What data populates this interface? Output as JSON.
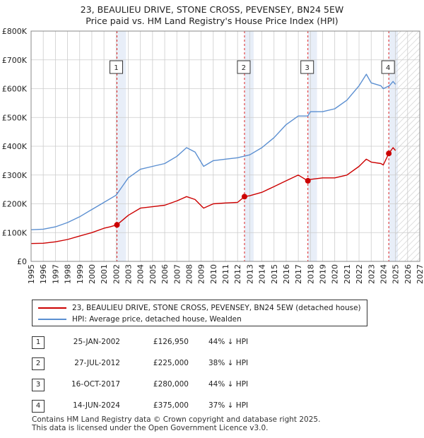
{
  "title_line1": "23, BEAULIEU DRIVE, STONE CROSS, PEVENSEY, BN24 5EW",
  "title_line2": "Price paid vs. HM Land Registry's House Price Index (HPI)",
  "colors": {
    "price": "#cc0000",
    "hpi": "#5b8fd1",
    "band": "#e8eef8",
    "vline": "#dd2222",
    "grid": "#cccccc"
  },
  "chart_data": {
    "type": "line",
    "title": "23, BEAULIEU DRIVE, STONE CROSS, PEVENSEY, BN24 5EW - Price paid vs. HM Land Registry's House Price Index (HPI)",
    "xlim": [
      1995,
      2027
    ],
    "ylim": [
      0,
      800000
    ],
    "yticks": [
      0,
      100000,
      200000,
      300000,
      400000,
      500000,
      600000,
      700000,
      800000
    ],
    "ytick_labels": [
      "£0",
      "£100K",
      "£200K",
      "£300K",
      "£400K",
      "£500K",
      "£600K",
      "£700K",
      "£800K"
    ],
    "xticks": [
      "1995",
      "1996",
      "1997",
      "1998",
      "1999",
      "2000",
      "2001",
      "2002",
      "2003",
      "2004",
      "2005",
      "2006",
      "2007",
      "2008",
      "2009",
      "2010",
      "2011",
      "2012",
      "2013",
      "2014",
      "2015",
      "2016",
      "2017",
      "2018",
      "2019",
      "2020",
      "2021",
      "2022",
      "2023",
      "2024",
      "2025",
      "2026",
      "2027"
    ],
    "forecast_from": 2025.0,
    "series": [
      {
        "name": "23, BEAULIEU DRIVE, STONE CROSS, PEVENSEY, BN24 5EW (detached house)",
        "x": [
          1995,
          1996,
          1997,
          1998,
          1999,
          2000,
          2001,
          2001.5,
          2002.07,
          2003,
          2004,
          2005,
          2006,
          2007,
          2007.8,
          2008.5,
          2009.2,
          2010,
          2011,
          2012.0,
          2012.57,
          2013,
          2014,
          2015,
          2016,
          2017.0,
          2017.78,
          2018,
          2019,
          2020,
          2021,
          2022,
          2022.6,
          2023,
          2023.8,
          2024.0,
          2024.45,
          2024.8,
          2025.0
        ],
        "values": [
          62000,
          63000,
          68000,
          76000,
          88000,
          100000,
          115000,
          120000,
          126950,
          160000,
          185000,
          190000,
          195000,
          210000,
          225000,
          215000,
          185000,
          200000,
          203000,
          205000,
          225000,
          228000,
          240000,
          260000,
          280000,
          300000,
          280000,
          285000,
          290000,
          290000,
          300000,
          330000,
          355000,
          345000,
          340000,
          335000,
          375000,
          395000,
          385000
        ]
      },
      {
        "name": "HPI: Average price, detached house, Wealden",
        "x": [
          1995,
          1996,
          1997,
          1998,
          1999,
          2000,
          2001,
          2002,
          2002.5,
          2003,
          2004,
          2005,
          2006,
          2007,
          2007.8,
          2008.5,
          2009.2,
          2010,
          2011,
          2012,
          2013,
          2014,
          2015,
          2016,
          2017,
          2017.78,
          2018,
          2019,
          2020,
          2021,
          2022,
          2022.6,
          2023,
          2023.8,
          2024.0,
          2024.5,
          2024.8,
          2025.0
        ],
        "values": [
          110000,
          112000,
          120000,
          135000,
          155000,
          180000,
          205000,
          230000,
          260000,
          290000,
          320000,
          330000,
          340000,
          365000,
          395000,
          380000,
          330000,
          350000,
          355000,
          360000,
          370000,
          395000,
          430000,
          475000,
          505000,
          505000,
          520000,
          520000,
          530000,
          560000,
          610000,
          650000,
          620000,
          610000,
          600000,
          610000,
          625000,
          615000
        ]
      }
    ],
    "sale_points": [
      {
        "label": "1",
        "x": 2002.07,
        "value": 126950
      },
      {
        "label": "2",
        "x": 2012.57,
        "value": 225000
      },
      {
        "label": "3",
        "x": 2017.79,
        "value": 280000
      },
      {
        "label": "4",
        "x": 2024.45,
        "value": 375000
      }
    ]
  },
  "legend": {
    "price_label": "23, BEAULIEU DRIVE, STONE CROSS, PEVENSEY, BN24 5EW (detached house)",
    "hpi_label": "HPI: Average price, detached house, Wealden"
  },
  "sales": [
    {
      "num": "1",
      "date": "25-JAN-2002",
      "price": "£126,950",
      "hpi": "44% ↓ HPI"
    },
    {
      "num": "2",
      "date": "27-JUL-2012",
      "price": "£225,000",
      "hpi": "38% ↓ HPI"
    },
    {
      "num": "3",
      "date": "16-OCT-2017",
      "price": "£280,000",
      "hpi": "44% ↓ HPI"
    },
    {
      "num": "4",
      "date": "14-JUN-2024",
      "price": "£375,000",
      "hpi": "37% ↓ HPI"
    }
  ],
  "footer_line1": "Contains HM Land Registry data © Crown copyright and database right 2025.",
  "footer_line2": "This data is licensed under the Open Government Licence v3.0."
}
